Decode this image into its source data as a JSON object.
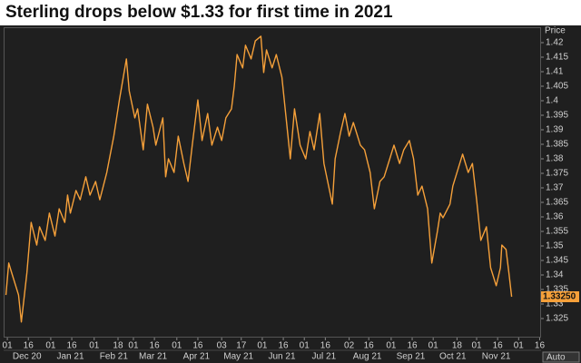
{
  "chart_data": {
    "type": "line",
    "title": "Sterling drops below $1.33 for first time in 2021",
    "y_axis_label": "Price",
    "color": "#f5a03a",
    "x": [
      "2020-11-30",
      "2020-12-02",
      "2020-12-04",
      "2020-12-09",
      "2020-12-11",
      "2020-12-15",
      "2020-12-18",
      "2020-12-22",
      "2020-12-24",
      "2020-12-28",
      "2020-12-31",
      "2021-01-04",
      "2021-01-07",
      "2021-01-11",
      "2021-01-13",
      "2021-01-15",
      "2021-01-19",
      "2021-01-22",
      "2021-01-26",
      "2021-01-29",
      "2021-02-02",
      "2021-02-05",
      "2021-02-10",
      "2021-02-15",
      "2021-02-19",
      "2021-02-24",
      "2021-02-26",
      "2021-03-02",
      "2021-03-04",
      "2021-03-08",
      "2021-03-11",
      "2021-03-15",
      "2021-03-17",
      "2021-03-22",
      "2021-03-24",
      "2021-03-26",
      "2021-03-30",
      "2021-04-02",
      "2021-04-06",
      "2021-04-09",
      "2021-04-12",
      "2021-04-16",
      "2021-04-19",
      "2021-04-23",
      "2021-04-26",
      "2021-04-30",
      "2021-05-03",
      "2021-05-06",
      "2021-05-10",
      "2021-05-12",
      "2021-05-14",
      "2021-05-18",
      "2021-05-20",
      "2021-05-24",
      "2021-05-27",
      "2021-05-31",
      "2021-06-02",
      "2021-06-04",
      "2021-06-08",
      "2021-06-11",
      "2021-06-15",
      "2021-06-18",
      "2021-06-21",
      "2021-06-24",
      "2021-06-28",
      "2021-07-02",
      "2021-07-05",
      "2021-07-08",
      "2021-07-12",
      "2021-07-15",
      "2021-07-19",
      "2021-07-21",
      "2021-07-23",
      "2021-07-27",
      "2021-07-30",
      "2021-08-02",
      "2021-08-05",
      "2021-08-10",
      "2021-08-13",
      "2021-08-17",
      "2021-08-20",
      "2021-08-24",
      "2021-08-27",
      "2021-08-31",
      "2021-09-03",
      "2021-09-07",
      "2021-09-10",
      "2021-09-14",
      "2021-09-17",
      "2021-09-20",
      "2021-09-23",
      "2021-09-27",
      "2021-09-30",
      "2021-10-04",
      "2021-10-06",
      "2021-10-08",
      "2021-10-13",
      "2021-10-15",
      "2021-10-19",
      "2021-10-22",
      "2021-10-26",
      "2021-10-29",
      "2021-11-01",
      "2021-11-04",
      "2021-11-08",
      "2021-11-11",
      "2021-11-15",
      "2021-11-18",
      "2021-11-19",
      "2021-11-22",
      "2021-11-24",
      "2021-11-26"
    ],
    "values": [
      1.3331,
      1.3441,
      1.3409,
      1.3331,
      1.3238,
      1.3409,
      1.3581,
      1.3503,
      1.3566,
      1.3519,
      1.3613,
      1.3534,
      1.3628,
      1.3581,
      1.3675,
      1.3613,
      1.3691,
      1.3659,
      1.3738,
      1.3675,
      1.3722,
      1.3659,
      1.3753,
      1.3878,
      1.4003,
      1.4144,
      1.4034,
      1.3941,
      1.3972,
      1.3831,
      1.3988,
      1.3909,
      1.3847,
      1.3941,
      1.3738,
      1.38,
      1.3753,
      1.3878,
      1.3784,
      1.3722,
      1.3847,
      1.4003,
      1.3863,
      1.3956,
      1.3847,
      1.3909,
      1.3863,
      1.3941,
      1.3972,
      1.405,
      1.4159,
      1.4113,
      1.4191,
      1.4144,
      1.4206,
      1.4222,
      1.4097,
      1.4175,
      1.4113,
      1.4159,
      1.4081,
      1.3941,
      1.38,
      1.3972,
      1.3847,
      1.38,
      1.3894,
      1.3831,
      1.3956,
      1.3784,
      1.3691,
      1.3644,
      1.38,
      1.3894,
      1.3956,
      1.3878,
      1.3925,
      1.3847,
      1.3831,
      1.3753,
      1.3628,
      1.3722,
      1.3738,
      1.38,
      1.3847,
      1.3784,
      1.3831,
      1.3863,
      1.38,
      1.3675,
      1.3706,
      1.3628,
      1.3441,
      1.355,
      1.3613,
      1.3597,
      1.3644,
      1.3706,
      1.3769,
      1.3816,
      1.3753,
      1.3784,
      1.3659,
      1.3519,
      1.3566,
      1.3425,
      1.3363,
      1.3425,
      1.3503,
      1.3488,
      1.3409,
      1.3325
    ],
    "last_price_label": "1.33250",
    "ylim": [
      1.3205,
      1.4235
    ],
    "yticks": [
      1.325,
      1.33,
      1.335,
      1.34,
      1.345,
      1.35,
      1.355,
      1.36,
      1.365,
      1.37,
      1.375,
      1.38,
      1.385,
      1.39,
      1.395,
      1.4,
      1.405,
      1.41,
      1.415,
      1.42
    ],
    "xlim": [
      "2020-11-29",
      "2021-12-17"
    ],
    "xticks": [
      {
        "value": "2020-12-01",
        "label": "01"
      },
      {
        "value": "2020-12-16",
        "label": "16"
      },
      {
        "value": "2021-01-01",
        "label": "01"
      },
      {
        "value": "2021-01-16",
        "label": "16"
      },
      {
        "value": "2021-02-01",
        "label": "01"
      },
      {
        "value": "2021-02-18",
        "label": "18"
      },
      {
        "value": "2021-03-01",
        "label": "01"
      },
      {
        "value": "2021-03-16",
        "label": "16"
      },
      {
        "value": "2021-04-01",
        "label": "01"
      },
      {
        "value": "2021-04-16",
        "label": "16"
      },
      {
        "value": "2021-05-03",
        "label": "03"
      },
      {
        "value": "2021-05-17",
        "label": "17"
      },
      {
        "value": "2021-06-01",
        "label": "01"
      },
      {
        "value": "2021-06-16",
        "label": "16"
      },
      {
        "value": "2021-07-01",
        "label": "01"
      },
      {
        "value": "2021-07-16",
        "label": "16"
      },
      {
        "value": "2021-08-02",
        "label": "02"
      },
      {
        "value": "2021-08-16",
        "label": "16"
      },
      {
        "value": "2021-09-01",
        "label": "01"
      },
      {
        "value": "2021-09-16",
        "label": "16"
      },
      {
        "value": "2021-10-01",
        "label": "01"
      },
      {
        "value": "2021-10-18",
        "label": "18"
      },
      {
        "value": "2021-11-01",
        "label": "01"
      },
      {
        "value": "2021-11-16",
        "label": "16"
      },
      {
        "value": "2021-12-01",
        "label": "01"
      },
      {
        "value": "2021-12-16",
        "label": "16"
      }
    ],
    "month_labels": [
      {
        "value": "2020-12",
        "label": "Dec 20"
      },
      {
        "value": "2021-01",
        "label": "Jan 21"
      },
      {
        "value": "2021-02",
        "label": "Feb 21"
      },
      {
        "value": "2021-03",
        "label": "Mar 21"
      },
      {
        "value": "2021-04",
        "label": "Apr 21"
      },
      {
        "value": "2021-05",
        "label": "May 21"
      },
      {
        "value": "2021-06",
        "label": "Jun 21"
      },
      {
        "value": "2021-07",
        "label": "Jul 21"
      },
      {
        "value": "2021-08",
        "label": "Aug 21"
      },
      {
        "value": "2021-09",
        "label": "Sep 21"
      },
      {
        "value": "2021-10",
        "label": "Oct 21"
      },
      {
        "value": "2021-11",
        "label": "Nov 21"
      }
    ],
    "auto_button": "Auto"
  }
}
